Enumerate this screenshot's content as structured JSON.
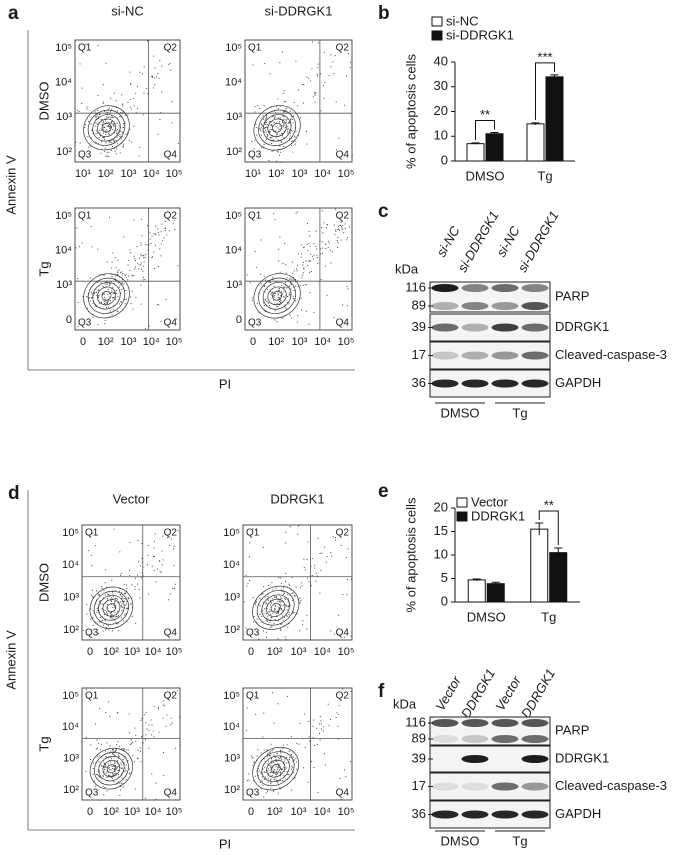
{
  "panel_labels": [
    "a",
    "b",
    "c",
    "d",
    "e",
    "f"
  ],
  "flow_panels": [
    {
      "columns": [
        "si-NC",
        "si-DDRGK1"
      ],
      "rows": [
        "DMSO",
        "Tg"
      ],
      "y_label": "Annexin V",
      "x_label": "PI",
      "quadrants": [
        "Q1",
        "Q2",
        "Q3",
        "Q4"
      ],
      "x_tick_labels": [
        [
          "10¹",
          "10²",
          "10³",
          "10⁴",
          "10⁵"
        ],
        [
          "0",
          "10²",
          "10³",
          "10⁴",
          "10⁵"
        ]
      ],
      "y_tick_labels": [
        [
          "10⁵",
          "10⁴",
          "10³",
          "10²"
        ],
        [
          "10⁵",
          "10⁴",
          "10³",
          "0"
        ]
      ]
    },
    {
      "columns": [
        "Vector",
        "DDRGK1"
      ],
      "rows": [
        "DMSO",
        "Tg"
      ],
      "y_label": "Annexin V",
      "x_label": "PI",
      "quadrants": [
        "Q1",
        "Q2",
        "Q3",
        "Q4"
      ],
      "x_tick_labels": [
        [
          "0",
          "10²",
          "10³",
          "10⁴",
          "10⁵"
        ],
        [
          "0",
          "10²",
          "10³",
          "10⁴",
          "10⁵"
        ]
      ],
      "y_tick_labels": [
        [
          "10⁵",
          "10⁴",
          "10³",
          "10²"
        ],
        [
          "10⁵",
          "10⁴",
          "10³",
          "10²"
        ]
      ]
    }
  ],
  "chart_data": [
    {
      "type": "bar",
      "y_label": "% of apoptosis cells",
      "categories": [
        "DMSO",
        "Tg"
      ],
      "series": [
        {
          "name": "si-NC",
          "color": "#ffffff",
          "values": [
            7,
            15
          ],
          "errors": [
            0.3,
            0.4
          ]
        },
        {
          "name": "si-DDRGK1",
          "color": "#111111",
          "values": [
            11,
            34
          ],
          "errors": [
            0.5,
            0.8
          ]
        }
      ],
      "significance": [
        "**",
        "***"
      ],
      "ylim": [
        0,
        40
      ],
      "yticks": [
        0,
        10,
        20,
        30,
        40
      ],
      "legend": "top-left"
    },
    {
      "type": "bar",
      "y_label": "% of apoptosis cells",
      "categories": [
        "DMSO",
        "Tg"
      ],
      "series": [
        {
          "name": "Vector",
          "color": "#ffffff",
          "values": [
            4.7,
            15.5
          ],
          "errors": [
            0.2,
            1.3
          ]
        },
        {
          "name": "DDRGK1",
          "color": "#111111",
          "values": [
            3.9,
            10.5
          ],
          "errors": [
            0.3,
            1.0
          ]
        }
      ],
      "significance": [
        null,
        "**"
      ],
      "ylim": [
        0,
        20
      ],
      "yticks": [
        0,
        5,
        10,
        15,
        20
      ],
      "legend": "top-left"
    }
  ],
  "blots": [
    {
      "unit": "kDa",
      "lanes": [
        "si-NC",
        "si-DDRGK1",
        "si-NC",
        "si-DDRGK1"
      ],
      "rows": [
        {
          "protein": "PARP",
          "markers": [
            116,
            89
          ]
        },
        {
          "protein": "DDRGK1",
          "markers": [
            39
          ]
        },
        {
          "protein": "Cleaved-caspase-3",
          "markers": [
            17
          ]
        },
        {
          "protein": "GAPDH",
          "markers": [
            36
          ]
        }
      ],
      "groups": [
        "DMSO",
        "Tg"
      ]
    },
    {
      "unit": "kDa",
      "lanes": [
        "Vector",
        "DDRGK1",
        "Vector",
        "DDRGK1"
      ],
      "rows": [
        {
          "protein": "PARP",
          "markers": [
            116,
            89
          ]
        },
        {
          "protein": "DDRGK1",
          "markers": [
            39
          ]
        },
        {
          "protein": "Cleaved-caspase-3",
          "markers": [
            17
          ]
        },
        {
          "protein": "GAPDH",
          "markers": [
            36
          ]
        }
      ],
      "groups": [
        "DMSO",
        "Tg"
      ]
    }
  ]
}
